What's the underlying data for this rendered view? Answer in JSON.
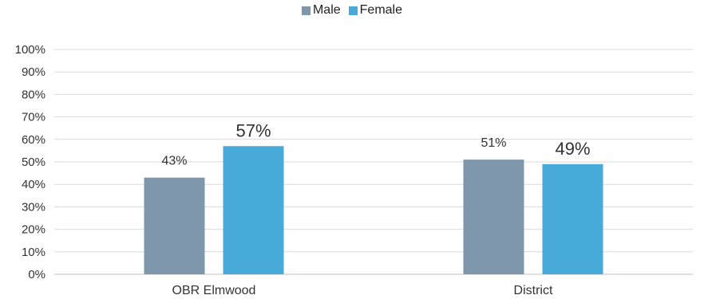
{
  "chart_data": {
    "type": "bar",
    "title": "",
    "xlabel": "",
    "ylabel": "",
    "categories": [
      "OBR Elmwood",
      "District"
    ],
    "series": [
      {
        "name": "Male",
        "values": [
          43,
          51
        ],
        "labels": [
          "43%",
          "51%"
        ],
        "color": "#7f97ad"
      },
      {
        "name": "Female",
        "values": [
          57,
          49
        ],
        "labels": [
          "57%",
          "49%"
        ],
        "color": "#47aad9"
      }
    ],
    "ylim": [
      0,
      100
    ],
    "yticks": [
      "0%",
      "10%",
      "20%",
      "30%",
      "40%",
      "50%",
      "60%",
      "70%",
      "80%",
      "90%",
      "100%"
    ],
    "grid": true,
    "legend": "top-center"
  }
}
